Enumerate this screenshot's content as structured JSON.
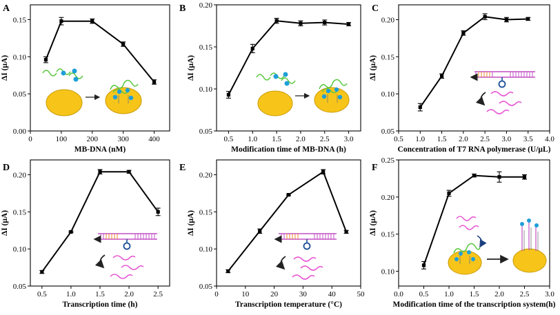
{
  "chart_data": [
    {
      "panel": "A",
      "type": "line",
      "xlabel": "MB-DNA (nM)",
      "ylabel": "ΔI (μA)",
      "xlim": [
        0,
        450
      ],
      "ylim": [
        0.0,
        0.17
      ],
      "xticks": [
        0,
        100,
        200,
        300,
        400
      ],
      "yticks": [
        0.0,
        0.05,
        0.1,
        0.15
      ],
      "ytick_labels": [
        "0.00",
        "0.05",
        "0.10",
        "0.15"
      ],
      "x": [
        50,
        100,
        200,
        300,
        400
      ],
      "y": [
        0.096,
        0.148,
        0.148,
        0.117,
        0.066
      ],
      "err": [
        0.004,
        0.005,
        0.003,
        0.003,
        0.003
      ]
    },
    {
      "panel": "B",
      "type": "line",
      "xlabel": "Modification time of MB-DNA (h)",
      "ylabel": "ΔI (μA)",
      "xlim": [
        0.25,
        3.25
      ],
      "ylim": [
        0.05,
        0.2
      ],
      "xticks": [
        0.5,
        1.0,
        1.5,
        2.0,
        2.5,
        3.0
      ],
      "yticks": [
        0.05,
        0.1,
        0.15,
        0.2
      ],
      "ytick_labels": [
        "0.05",
        "0.10",
        "0.15",
        "0.20"
      ],
      "x": [
        0.5,
        1.0,
        1.5,
        2.0,
        2.5,
        3.0
      ],
      "y": [
        0.093,
        0.148,
        0.181,
        0.178,
        0.179,
        0.177
      ],
      "err": [
        0.004,
        0.005,
        0.003,
        0.003,
        0.003,
        0.002
      ]
    },
    {
      "panel": "C",
      "type": "line",
      "xlabel": "Concentration of T7 RNA polymerase (U/μL)",
      "ylabel": "ΔI (μA)",
      "xlim": [
        0.5,
        4.0
      ],
      "ylim": [
        0.05,
        0.22
      ],
      "xticks": [
        0.5,
        1.0,
        1.5,
        2.0,
        2.5,
        3.0,
        3.5,
        4.0
      ],
      "yticks": [
        0.05,
        0.1,
        0.15,
        0.2
      ],
      "ytick_labels": [
        "0.05",
        "0.10",
        "0.15",
        "0.20"
      ],
      "x": [
        1.0,
        1.5,
        2.0,
        2.5,
        3.0,
        3.5
      ],
      "y": [
        0.082,
        0.124,
        0.182,
        0.204,
        0.2,
        0.201
      ],
      "err": [
        0.005,
        0.003,
        0.003,
        0.004,
        0.003,
        0.002
      ]
    },
    {
      "panel": "D",
      "type": "line",
      "xlabel": "Transcription time (h)",
      "ylabel": "ΔI (μA)",
      "xlim": [
        0.3,
        2.7
      ],
      "ylim": [
        0.05,
        0.22
      ],
      "xticks": [
        0.5,
        1.0,
        1.5,
        2.0,
        2.5
      ],
      "yticks": [
        0.05,
        0.1,
        0.15,
        0.2
      ],
      "ytick_labels": [
        "0.05",
        "0.10",
        "0.15",
        "0.20"
      ],
      "x": [
        0.5,
        1.0,
        1.5,
        2.0,
        2.5
      ],
      "y": [
        0.069,
        0.123,
        0.204,
        0.204,
        0.15
      ],
      "err": [
        0.002,
        0.001,
        0.003,
        0.002,
        0.005
      ]
    },
    {
      "panel": "E",
      "type": "line",
      "xlabel": "Transcription temperature (°C)",
      "ylabel": "ΔI (μA)",
      "xlim": [
        0,
        50
      ],
      "ylim": [
        0.05,
        0.22
      ],
      "xticks": [
        0,
        10,
        20,
        30,
        40,
        50
      ],
      "yticks": [
        0.05,
        0.1,
        0.15,
        0.2
      ],
      "ytick_labels": [
        "0.05",
        "0.10",
        "0.15",
        "0.20"
      ],
      "x": [
        4,
        15,
        25,
        37,
        45
      ],
      "y": [
        0.07,
        0.124,
        0.173,
        0.204,
        0.123
      ],
      "err": [
        0.002,
        0.003,
        0.001,
        0.003,
        0.002
      ]
    },
    {
      "panel": "F",
      "type": "line",
      "xlabel": "Modification time of the transcription system(h)",
      "ylabel": "ΔI (μA)",
      "xlim": [
        0.0,
        3.0
      ],
      "ylim": [
        0.08,
        0.25
      ],
      "xticks": [
        0.0,
        0.5,
        1.0,
        1.5,
        2.0,
        2.5,
        3.0
      ],
      "yticks": [
        0.1,
        0.15,
        0.2,
        0.25
      ],
      "ytick_labels": [
        "0.10",
        "0.15",
        "0.20",
        "0.25"
      ],
      "x": [
        0.5,
        1.0,
        1.5,
        2.0,
        2.5
      ],
      "y": [
        0.108,
        0.205,
        0.229,
        0.227,
        0.227
      ],
      "err": [
        0.005,
        0.004,
        0.002,
        0.007,
        0.003
      ]
    }
  ],
  "colors": {
    "line": "#000000",
    "bead_fill": "#f7c51a",
    "bead_stroke": "#c99a06",
    "dna_strand": "#55c73c",
    "methylene_blue": "#1f9fd8",
    "rna": "#e85ad4",
    "primer": "#f08a2c",
    "template": "#c24fc4",
    "promoter_loop": "#1c4f9a",
    "arrow": "#222222"
  }
}
